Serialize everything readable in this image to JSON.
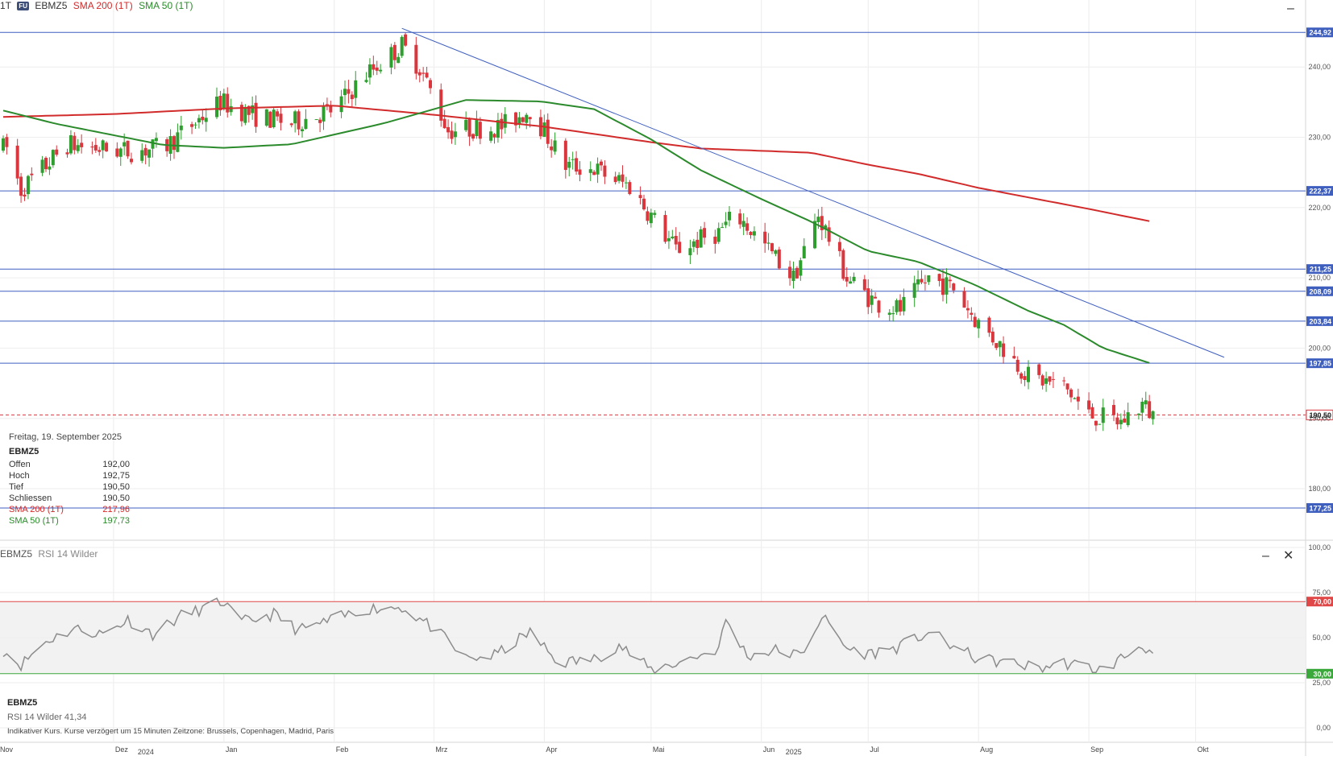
{
  "header": {
    "interval": "1T",
    "source_badge": "FU",
    "symbol": "EBMZ5",
    "sma200_label": "SMA 200 (1T)",
    "sma50_label": "SMA 50 (1T)"
  },
  "info_box": {
    "date": "Freitag, 19. September 2025",
    "symbol": "EBMZ5",
    "rows": [
      {
        "label": "Offen",
        "value": "192,00"
      },
      {
        "label": "Hoch",
        "value": "192,75"
      },
      {
        "label": "Tief",
        "value": "190,50"
      },
      {
        "label": "Schliessen",
        "value": "190,50"
      }
    ],
    "sma200": {
      "label": "SMA 200 (1T)",
      "value": "217,96"
    },
    "sma50": {
      "label": "SMA 50 (1T)",
      "value": "197,73"
    }
  },
  "rsi_panel": {
    "header": "EBMZ5",
    "indicator_label": "RSI 14 Wilder",
    "legend_symbol": "EBMZ5",
    "legend_value": "RSI 14 Wilder 41,34"
  },
  "footer": {
    "note": "Indikativer Kurs. Kurse verzögert um 15 Minuten   Zeitzone: Brussels, Copenhagen, Madrid, Paris"
  },
  "colors": {
    "candle_up": "#2e9e2e",
    "candle_down": "#d9363e",
    "sma200": "#d12b2b",
    "sma50": "#2b8a2b",
    "level_line": "#3f5fbf",
    "rsi_line": "#8c8c8c",
    "rsi_upper": "#e04848",
    "rsi_lower": "#3aa83a"
  },
  "chart_data": [
    {
      "type": "candlestick",
      "title": "EBMZ5",
      "y_ticks": [
        "180,00",
        "190,00",
        "200,00",
        "210,00",
        "220,00",
        "230,00",
        "240,00"
      ],
      "y_tick_values": [
        180,
        190,
        200,
        210,
        220,
        230,
        240
      ],
      "x_ticks": [
        "Nov",
        "Dez",
        "Jan",
        "Feb",
        "Mrz",
        "Apr",
        "Mai",
        "Jun",
        "Jul",
        "Aug",
        "Sep",
        "Okt"
      ],
      "x_year_labels": [
        {
          "label": "2024",
          "month": "Dez"
        },
        {
          "label": "2025",
          "month": "Jun"
        }
      ],
      "horizontal_levels": [
        {
          "value": 244.92,
          "label": "244,92"
        },
        {
          "value": 222.37,
          "label": "222,37"
        },
        {
          "value": 211.25,
          "label": "211,25"
        },
        {
          "value": 208.09,
          "label": "208,09"
        },
        {
          "value": 203.84,
          "label": "203,84"
        },
        {
          "value": 197.85,
          "label": "197,85"
        },
        {
          "value": 177.25,
          "label": "177,25"
        }
      ],
      "last_price": {
        "value": 190.5,
        "label": "190,50"
      },
      "trendline": {
        "from": {
          "date": "2025-02-20",
          "value": 245.5
        },
        "to": {
          "date": "2025-10-09",
          "value": 198.7
        }
      },
      "series": [
        {
          "name": "SMA 200 (1T)",
          "points": [
            [
              "2024-10-31",
              232.9
            ],
            [
              "2024-12-01",
              233.3
            ],
            [
              "2025-01-01",
              234.1
            ],
            [
              "2025-02-01",
              234.5
            ],
            [
              "2025-03-01",
              233.2
            ],
            [
              "2025-04-01",
              231.5
            ],
            [
              "2025-05-01",
              229.3
            ],
            [
              "2025-05-15",
              228.4
            ],
            [
              "2025-06-15",
              227.8
            ],
            [
              "2025-07-01",
              226.1
            ],
            [
              "2025-07-15",
              224.8
            ],
            [
              "2025-08-01",
              222.8
            ],
            [
              "2025-09-01",
              219.8
            ],
            [
              "2025-09-19",
              217.96
            ]
          ]
        },
        {
          "name": "SMA 50 (1T)",
          "points": [
            [
              "2024-10-31",
              233.8
            ],
            [
              "2024-11-15",
              231.9
            ],
            [
              "2024-12-15",
              228.9
            ],
            [
              "2025-01-01",
              228.5
            ],
            [
              "2025-01-20",
              229.0
            ],
            [
              "2025-02-15",
              232.0
            ],
            [
              "2025-03-10",
              235.3
            ],
            [
              "2025-03-31",
              235.1
            ],
            [
              "2025-04-15",
              234.0
            ],
            [
              "2025-05-01",
              229.7
            ],
            [
              "2025-05-15",
              225.3
            ],
            [
              "2025-06-01",
              221.2
            ],
            [
              "2025-06-15",
              218.0
            ],
            [
              "2025-07-01",
              213.8
            ],
            [
              "2025-07-15",
              212.3
            ],
            [
              "2025-07-31",
              209.0
            ],
            [
              "2025-08-15",
              205.3
            ],
            [
              "2025-08-25",
              203.3
            ],
            [
              "2025-09-05",
              200.0
            ],
            [
              "2025-09-19",
              197.73
            ]
          ]
        }
      ],
      "ohlc_anchors": [
        [
          "2024-11-01",
          228.5
        ],
        [
          "2024-11-05",
          222.5
        ],
        [
          "2024-11-18",
          229.0
        ],
        [
          "2024-11-25",
          228.5
        ],
        [
          "2024-12-05",
          228.0
        ],
        [
          "2024-12-15",
          228.5
        ],
        [
          "2024-12-20",
          230.5
        ],
        [
          "2024-12-31",
          235.0
        ],
        [
          "2025-01-10",
          233.0
        ],
        [
          "2025-01-20",
          232.0
        ],
        [
          "2025-02-01",
          234.0
        ],
        [
          "2025-02-10",
          239.0
        ],
        [
          "2025-02-20",
          243.0
        ],
        [
          "2025-02-25",
          240.0
        ],
        [
          "2025-03-05",
          231.0
        ],
        [
          "2025-03-20",
          231.5
        ],
        [
          "2025-03-28",
          234.0
        ],
        [
          "2025-04-07",
          226.0
        ],
        [
          "2025-04-15",
          225.5
        ],
        [
          "2025-04-25",
          223.0
        ],
        [
          "2025-05-08",
          214.0
        ],
        [
          "2025-05-20",
          216.5
        ],
        [
          "2025-05-25",
          219.0
        ],
        [
          "2025-06-10",
          210.0
        ],
        [
          "2025-06-17",
          219.0
        ],
        [
          "2025-06-25",
          210.0
        ],
        [
          "2025-07-03",
          206.5
        ],
        [
          "2025-07-10",
          205.5
        ],
        [
          "2025-07-18",
          210.0
        ],
        [
          "2025-07-25",
          208.5
        ],
        [
          "2025-08-01",
          203.5
        ],
        [
          "2025-08-08",
          200.0
        ],
        [
          "2025-08-15",
          196.0
        ],
        [
          "2025-08-25",
          194.5
        ],
        [
          "2025-09-01",
          190.5
        ],
        [
          "2025-09-10",
          189.5
        ],
        [
          "2025-09-16",
          192.0
        ],
        [
          "2025-09-19",
          190.5
        ]
      ],
      "candle_dates": [
        "2024-10-31",
        "2025-09-19"
      ]
    },
    {
      "type": "line",
      "title": "RSI 14 Wilder",
      "y_ticks": [
        "0,00",
        "25,00",
        "50,00",
        "75,00",
        "100,00"
      ],
      "y_tick_values": [
        0,
        25,
        50,
        75,
        100
      ],
      "upper_band": {
        "value": 70,
        "label": "70,00"
      },
      "lower_band": {
        "value": 30,
        "label": "30,00"
      },
      "last_value": 41.34,
      "anchors": [
        [
          "2024-10-31",
          43
        ],
        [
          "2024-11-05",
          35
        ],
        [
          "2024-11-12",
          48
        ],
        [
          "2024-11-20",
          55
        ],
        [
          "2024-11-28",
          52
        ],
        [
          "2024-12-05",
          60
        ],
        [
          "2024-12-12",
          52
        ],
        [
          "2024-12-20",
          62
        ],
        [
          "2025-01-01",
          70
        ],
        [
          "2025-01-05",
          58
        ],
        [
          "2025-01-15",
          63
        ],
        [
          "2025-01-22",
          54
        ],
        [
          "2025-02-01",
          60
        ],
        [
          "2025-02-10",
          66
        ],
        [
          "2025-02-20",
          67
        ],
        [
          "2025-03-01",
          55
        ],
        [
          "2025-03-10",
          38
        ],
        [
          "2025-03-18",
          40
        ],
        [
          "2025-03-28",
          53
        ],
        [
          "2025-04-05",
          36
        ],
        [
          "2025-04-15",
          38
        ],
        [
          "2025-04-22",
          46
        ],
        [
          "2025-05-01",
          32
        ],
        [
          "2025-05-10",
          37
        ],
        [
          "2025-05-20",
          44
        ],
        [
          "2025-05-22",
          60
        ],
        [
          "2025-05-28",
          40
        ],
        [
          "2025-06-05",
          43
        ],
        [
          "2025-06-12",
          40
        ],
        [
          "2025-06-18",
          62
        ],
        [
          "2025-06-25",
          44
        ],
        [
          "2025-07-01",
          41
        ],
        [
          "2025-07-10",
          45
        ],
        [
          "2025-07-18",
          53
        ],
        [
          "2025-07-25",
          45
        ],
        [
          "2025-08-01",
          38
        ],
        [
          "2025-08-10",
          36
        ],
        [
          "2025-08-18",
          33
        ],
        [
          "2025-08-25",
          36
        ],
        [
          "2025-09-05",
          32
        ],
        [
          "2025-09-16",
          46
        ],
        [
          "2025-09-19",
          41.34
        ]
      ]
    }
  ]
}
